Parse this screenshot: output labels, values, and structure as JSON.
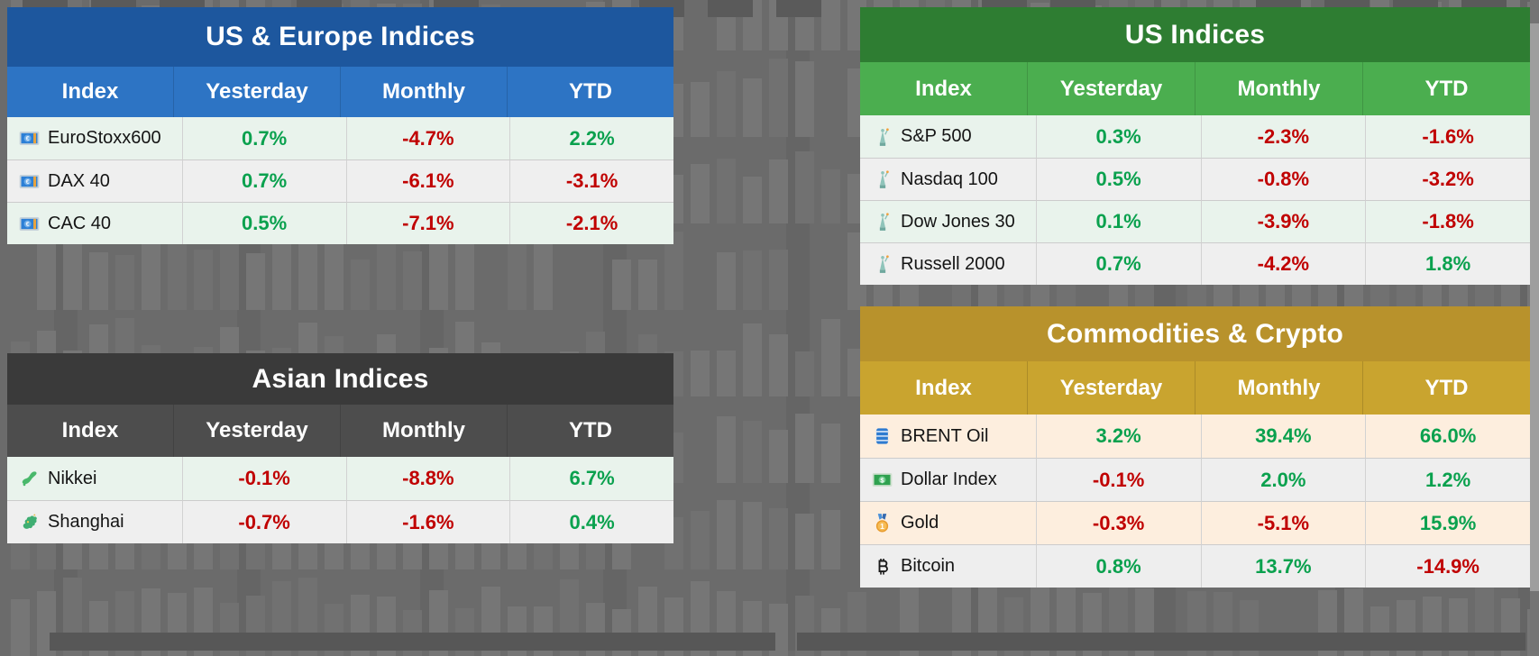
{
  "colors": {
    "positive": "#0aa14e",
    "negative": "#c00000",
    "background": "#6b6b6b",
    "background_bar": "#767676",
    "background_dark": "#5a5a5a",
    "scrollbar_thumb": "#9e9e9e"
  },
  "tables": [
    {
      "title": "US & Europe Indices",
      "theme": {
        "title_bg": "#1d579e",
        "header_bg": "#2d74c4",
        "row_colors": [
          "#e9f3ec",
          "#efefef"
        ]
      },
      "columns": [
        "Index",
        "Yesterday",
        "Monthly",
        "YTD"
      ],
      "rows": [
        {
          "icon": "euro-banknote-icon",
          "name": "EuroStoxx600",
          "values": [
            "0.7%",
            "-4.7%",
            "2.2%"
          ]
        },
        {
          "icon": "euro-banknote-icon",
          "name": "DAX 40",
          "values": [
            "0.7%",
            "-6.1%",
            "-3.1%"
          ]
        },
        {
          "icon": "euro-banknote-icon",
          "name": "CAC 40",
          "values": [
            "0.5%",
            "-7.1%",
            "-2.1%"
          ]
        }
      ]
    },
    {
      "title": "Asian Indices",
      "theme": {
        "title_bg": "#3a3a3a",
        "header_bg": "#4d4d4d",
        "row_colors": [
          "#e9f3ec",
          "#efefef"
        ]
      },
      "columns": [
        "Index",
        "Yesterday",
        "Monthly",
        "YTD"
      ],
      "rows": [
        {
          "icon": "japan-map-icon",
          "name": "Nikkei",
          "values": [
            "-0.1%",
            "-8.8%",
            "6.7%"
          ]
        },
        {
          "icon": "dragon-icon",
          "name": "Shanghai",
          "values": [
            "-0.7%",
            "-1.6%",
            "0.4%"
          ]
        }
      ]
    },
    {
      "title": "US Indices",
      "theme": {
        "title_bg": "#2e7d32",
        "header_bg": "#4bae4f",
        "row_colors": [
          "#e9f3ec",
          "#efefef"
        ]
      },
      "columns": [
        "Index",
        "Yesterday",
        "Monthly",
        "YTD"
      ],
      "rows": [
        {
          "icon": "statue-of-liberty-icon",
          "name": "S&P 500",
          "values": [
            "0.3%",
            "-2.3%",
            "-1.6%"
          ]
        },
        {
          "icon": "statue-of-liberty-icon",
          "name": "Nasdaq 100",
          "values": [
            "0.5%",
            "-0.8%",
            "-3.2%"
          ]
        },
        {
          "icon": "statue-of-liberty-icon",
          "name": "Dow Jones 30",
          "values": [
            "0.1%",
            "-3.9%",
            "-1.8%"
          ]
        },
        {
          "icon": "statue-of-liberty-icon",
          "name": "Russell 2000",
          "values": [
            "0.7%",
            "-4.2%",
            "1.8%"
          ]
        }
      ]
    },
    {
      "title": "Commodities & Crypto",
      "theme": {
        "title_bg": "#b8922c",
        "header_bg": "#c9a42f",
        "row_colors": [
          "#fdeede",
          "#eeeeee"
        ]
      },
      "columns": [
        "Index",
        "Yesterday",
        "Monthly",
        "YTD"
      ],
      "rows": [
        {
          "icon": "oil-drum-icon",
          "name": "BRENT Oil",
          "values": [
            "3.2%",
            "39.4%",
            "66.0%"
          ]
        },
        {
          "icon": "dollar-banknote-icon",
          "name": "Dollar Index",
          "values": [
            "-0.1%",
            "2.0%",
            "1.2%"
          ]
        },
        {
          "icon": "gold-medal-icon",
          "name": "Gold",
          "values": [
            "-0.3%",
            "-5.1%",
            "15.9%"
          ]
        },
        {
          "icon": "bitcoin-icon",
          "name": "Bitcoin",
          "values": [
            "0.8%",
            "13.7%",
            "-14.9%"
          ]
        }
      ]
    }
  ]
}
